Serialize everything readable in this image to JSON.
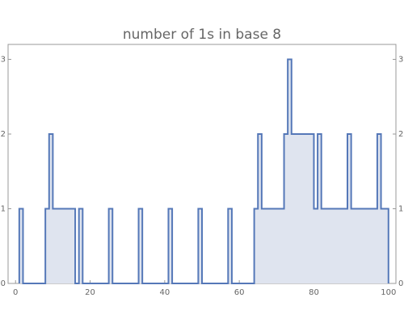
{
  "chart_data": {
    "type": "step",
    "title": "number of 1s in base 8",
    "x": [
      1,
      2,
      3,
      4,
      5,
      6,
      7,
      8,
      9,
      10,
      11,
      12,
      13,
      14,
      15,
      16,
      17,
      18,
      19,
      20,
      21,
      22,
      23,
      24,
      25,
      26,
      27,
      28,
      29,
      30,
      31,
      32,
      33,
      34,
      35,
      36,
      37,
      38,
      39,
      40,
      41,
      42,
      43,
      44,
      45,
      46,
      47,
      48,
      49,
      50,
      51,
      52,
      53,
      54,
      55,
      56,
      57,
      58,
      59,
      60,
      61,
      62,
      63,
      64,
      65,
      66,
      67,
      68,
      69,
      70,
      71,
      72,
      73,
      74,
      75,
      76,
      77,
      78,
      79,
      80,
      81,
      82,
      83,
      84,
      85,
      86,
      87,
      88,
      89,
      90,
      91,
      92,
      93,
      94,
      95,
      96,
      97,
      98,
      99,
      100
    ],
    "values": [
      1,
      0,
      0,
      0,
      0,
      0,
      0,
      1,
      2,
      1,
      1,
      1,
      1,
      1,
      1,
      0,
      1,
      0,
      0,
      0,
      0,
      0,
      0,
      0,
      1,
      0,
      0,
      0,
      0,
      0,
      0,
      0,
      1,
      0,
      0,
      0,
      0,
      0,
      0,
      0,
      1,
      0,
      0,
      0,
      0,
      0,
      0,
      0,
      1,
      0,
      0,
      0,
      0,
      0,
      0,
      0,
      1,
      0,
      0,
      0,
      0,
      0,
      0,
      1,
      2,
      1,
      1,
      1,
      1,
      1,
      1,
      2,
      3,
      2,
      2,
      2,
      2,
      2,
      2,
      1,
      2,
      1,
      1,
      1,
      1,
      1,
      1,
      1,
      2,
      1,
      1,
      1,
      1,
      1,
      1,
      1,
      2,
      1,
      1,
      1
    ],
    "color": "#5578b8",
    "fill_color": "#dfe4ef",
    "xlim": [
      -2,
      102
    ],
    "xticks": [
      0,
      20,
      40,
      60,
      80,
      100
    ],
    "ylim": [
      0,
      3.2
    ],
    "yticks": [
      0,
      1,
      2,
      3
    ]
  }
}
